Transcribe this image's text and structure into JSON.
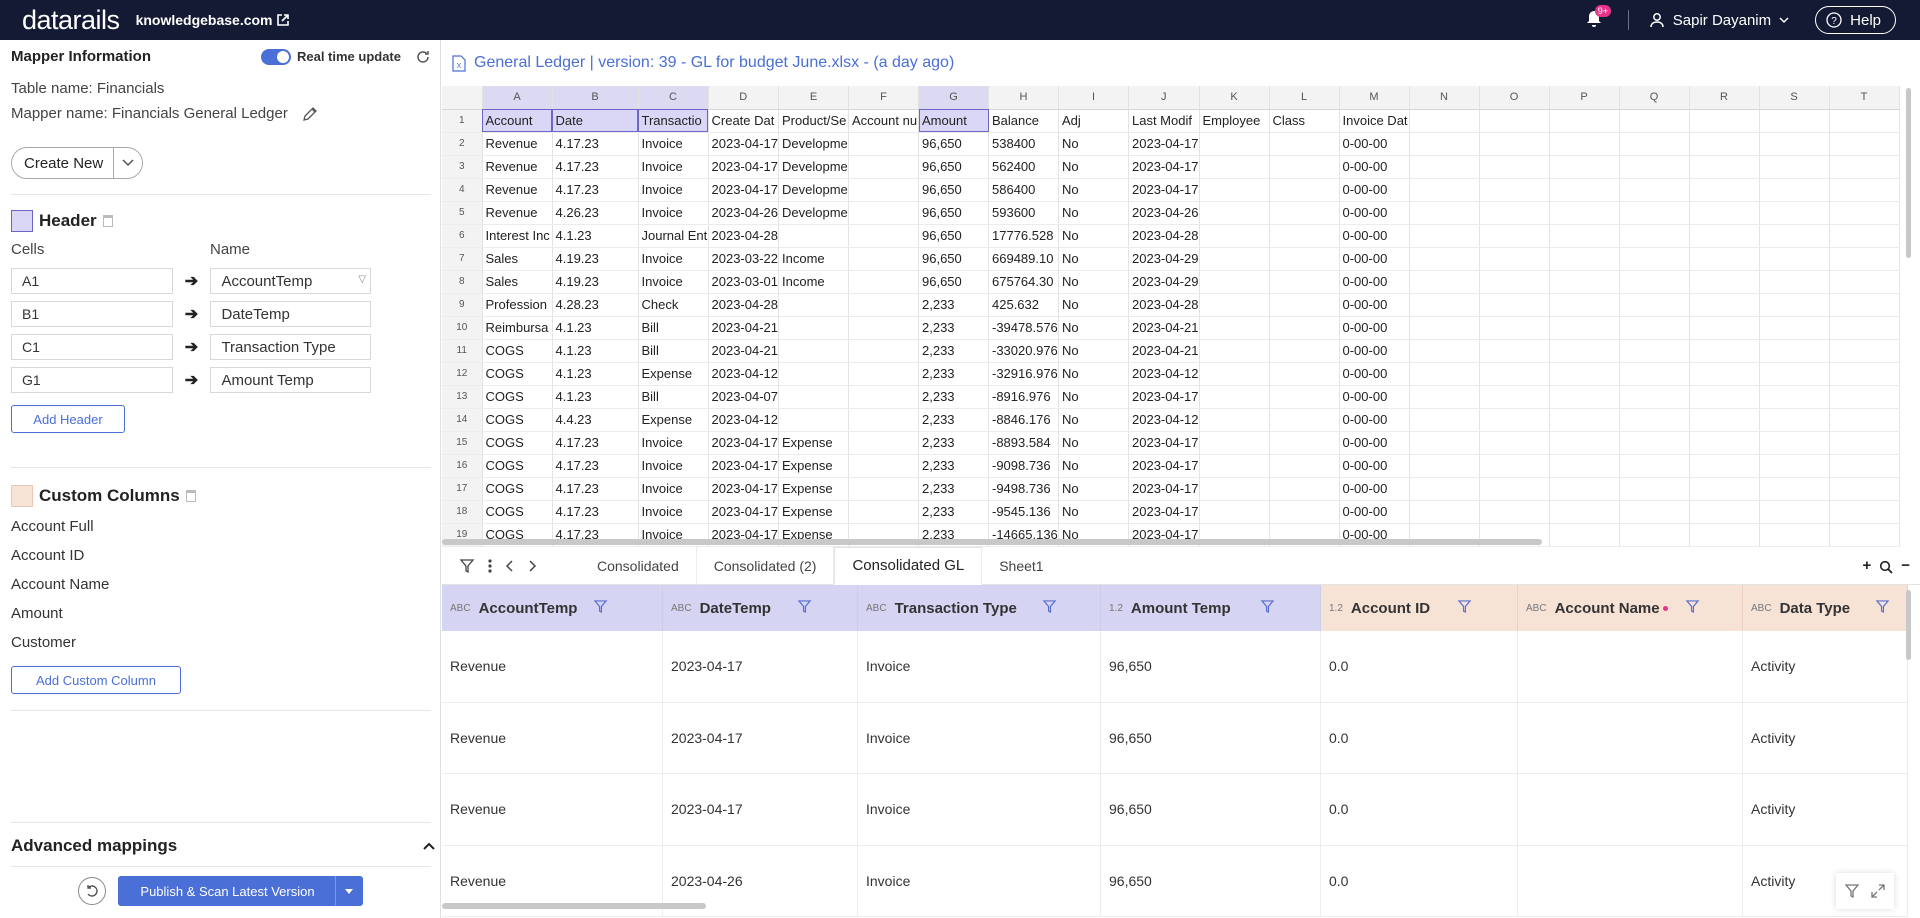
{
  "topbar": {
    "logo": "datarails",
    "tenant": "knowledgebase.com",
    "notif_badge": "9+",
    "user": "Sapir Dayanim",
    "help": "Help"
  },
  "mapper": {
    "title": "Mapper Information",
    "realtime_label": "Real time update",
    "table_name": "Table name: Financials",
    "mapper_name": "Mapper name: Financials General Ledger",
    "create_new": "Create New",
    "header": {
      "title": "Header",
      "cells_label": "Cells",
      "name_label": "Name",
      "rows": [
        {
          "cell": "A1",
          "name": "AccountTemp"
        },
        {
          "cell": "B1",
          "name": "DateTemp"
        },
        {
          "cell": "C1",
          "name": "Transaction Type"
        },
        {
          "cell": "G1",
          "name": "Amount Temp"
        }
      ],
      "add_label": "Add Header"
    },
    "custom": {
      "title": "Custom Columns",
      "items": [
        "Account Full",
        "Account ID",
        "Account Name",
        "Amount",
        "Customer"
      ],
      "add_label": "Add Custom Column"
    },
    "advanced": "Advanced mappings",
    "publish": "Publish & Scan Latest Version"
  },
  "file": {
    "title": "General Ledger | version: 39 - GL for budget June.xlsx - (a day ago)"
  },
  "sheet": {
    "columns": [
      "A",
      "B",
      "C",
      "D",
      "E",
      "F",
      "G",
      "H",
      "I",
      "J",
      "K",
      "L",
      "M",
      "N",
      "O",
      "P",
      "Q",
      "R",
      "S",
      "T"
    ],
    "rows": [
      [
        "Account",
        "Date",
        "Transactio",
        "Create Dat",
        "Product/Se",
        "Account nu",
        "Amount",
        "Balance",
        "Adj",
        "Last Modif",
        "Employee",
        "Class",
        "Invoice Dat"
      ],
      [
        "Revenue",
        "4.17.23",
        "Invoice",
        "2023-04-17",
        "Developme",
        "",
        "96,650",
        "538400",
        "No",
        "2023-04-17",
        "",
        "",
        "0-00-00"
      ],
      [
        "Revenue",
        "4.17.23",
        "Invoice",
        "2023-04-17",
        "Developme",
        "",
        "96,650",
        "562400",
        "No",
        "2023-04-17",
        "",
        "",
        "0-00-00"
      ],
      [
        "Revenue",
        "4.17.23",
        "Invoice",
        "2023-04-17",
        "Developme",
        "",
        "96,650",
        "586400",
        "No",
        "2023-04-17",
        "",
        "",
        "0-00-00"
      ],
      [
        "Revenue",
        "4.26.23",
        "Invoice",
        "2023-04-26",
        "Developme",
        "",
        "96,650",
        "593600",
        "No",
        "2023-04-26",
        "",
        "",
        "0-00-00"
      ],
      [
        "Interest Inc",
        "4.1.23",
        "Journal Ent",
        "2023-04-28",
        "",
        "",
        "96,650",
        "17776.528",
        "No",
        "2023-04-28",
        "",
        "",
        "0-00-00"
      ],
      [
        "Sales",
        "4.19.23",
        "Invoice",
        "2023-03-22",
        "Income",
        "",
        "96,650",
        "669489.10",
        "No",
        "2023-04-29",
        "",
        "",
        "0-00-00"
      ],
      [
        "Sales",
        "4.19.23",
        "Invoice",
        "2023-03-01",
        "Income",
        "",
        "96,650",
        "675764.30",
        "No",
        "2023-04-29",
        "",
        "",
        "0-00-00"
      ],
      [
        "Profession",
        "4.28.23",
        "Check",
        "2023-04-28",
        "",
        "",
        "2,233",
        "425.632",
        "No",
        "2023-04-28",
        "",
        "",
        "0-00-00"
      ],
      [
        "Reimbursa",
        "4.1.23",
        "Bill",
        "2023-04-21",
        "",
        "",
        "2,233",
        "-39478.576",
        "No",
        "2023-04-21",
        "",
        "",
        "0-00-00"
      ],
      [
        "COGS",
        "4.1.23",
        "Bill",
        "2023-04-21",
        "",
        "",
        "2,233",
        "-33020.976",
        "No",
        "2023-04-21",
        "",
        "",
        "0-00-00"
      ],
      [
        "COGS",
        "4.1.23",
        "Expense",
        "2023-04-12",
        "",
        "",
        "2,233",
        "-32916.976",
        "No",
        "2023-04-12",
        "",
        "",
        "0-00-00"
      ],
      [
        "COGS",
        "4.1.23",
        "Bill",
        "2023-04-07",
        "",
        "",
        "2,233",
        "-8916.976",
        "No",
        "2023-04-17",
        "",
        "",
        "0-00-00"
      ],
      [
        "COGS",
        "4.4.23",
        "Expense",
        "2023-04-12",
        "",
        "",
        "2,233",
        "-8846.176",
        "No",
        "2023-04-12",
        "",
        "",
        "0-00-00"
      ],
      [
        "COGS",
        "4.17.23",
        "Invoice",
        "2023-04-17",
        "Expense",
        "",
        "2,233",
        "-8893.584",
        "No",
        "2023-04-17",
        "",
        "",
        "0-00-00"
      ],
      [
        "COGS",
        "4.17.23",
        "Invoice",
        "2023-04-17",
        "Expense",
        "",
        "2,233",
        "-9098.736",
        "No",
        "2023-04-17",
        "",
        "",
        "0-00-00"
      ],
      [
        "COGS",
        "4.17.23",
        "Invoice",
        "2023-04-17",
        "Expense",
        "",
        "2,233",
        "-9498.736",
        "No",
        "2023-04-17",
        "",
        "",
        "0-00-00"
      ],
      [
        "COGS",
        "4.17.23",
        "Invoice",
        "2023-04-17",
        "Expense",
        "",
        "2,233",
        "-9545.136",
        "No",
        "2023-04-17",
        "",
        "",
        "0-00-00"
      ],
      [
        "COGS",
        "4.17.23",
        "Invoice",
        "2023-04-17",
        "Expense",
        "",
        "2,233",
        "-14665.136",
        "No",
        "2023-04-17",
        "",
        "",
        "0-00-00"
      ]
    ]
  },
  "tabs": [
    "Consolidated",
    "Consolidated (2)",
    "Consolidated GL",
    "Sheet1"
  ],
  "grid": {
    "columns": [
      {
        "type": "ABC",
        "name": "AccountTemp"
      },
      {
        "type": "ABC",
        "name": "DateTemp"
      },
      {
        "type": "ABC",
        "name": "Transaction Type"
      },
      {
        "type": "1.2",
        "name": "Amount Temp"
      },
      {
        "type": "1.2",
        "name": "Account ID"
      },
      {
        "type": "ABC",
        "name": "Account Name"
      },
      {
        "type": "ABC",
        "name": "Data Type"
      }
    ],
    "rows": [
      [
        "Revenue",
        "2023-04-17",
        "Invoice",
        "96,650",
        "0.0",
        "",
        "Activity"
      ],
      [
        "Revenue",
        "2023-04-17",
        "Invoice",
        "96,650",
        "0.0",
        "",
        "Activity"
      ],
      [
        "Revenue",
        "2023-04-17",
        "Invoice",
        "96,650",
        "0.0",
        "",
        "Activity"
      ],
      [
        "Revenue",
        "2023-04-26",
        "Invoice",
        "96,650",
        "0.0",
        "",
        "Activity"
      ]
    ]
  }
}
